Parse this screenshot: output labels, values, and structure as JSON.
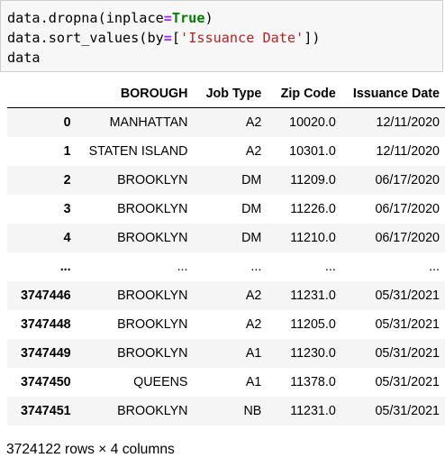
{
  "code": {
    "line1": {
      "pre": "data.dropna(inplace",
      "eq": "=",
      "kw": "True",
      "post": ")"
    },
    "line2": {
      "pre": "data.sort_values(by",
      "eq": "=",
      "open": "[",
      "str": "'Issuance Date'",
      "post": "])"
    },
    "line3": "data"
  },
  "table": {
    "columns": [
      "BOROUGH",
      "Job Type",
      "Zip Code",
      "Issuance Date"
    ],
    "rows": [
      {
        "index": "0",
        "cells": [
          "MANHATTAN",
          "A2",
          "10020.0",
          "12/11/2020"
        ]
      },
      {
        "index": "1",
        "cells": [
          "STATEN ISLAND",
          "A2",
          "10301.0",
          "12/11/2020"
        ]
      },
      {
        "index": "2",
        "cells": [
          "BROOKLYN",
          "DM",
          "11209.0",
          "06/17/2020"
        ]
      },
      {
        "index": "3",
        "cells": [
          "BROOKLYN",
          "DM",
          "11226.0",
          "06/17/2020"
        ]
      },
      {
        "index": "4",
        "cells": [
          "BROOKLYN",
          "DM",
          "11210.0",
          "06/17/2020"
        ]
      },
      {
        "index": "...",
        "cells": [
          "...",
          "...",
          "...",
          "..."
        ]
      },
      {
        "index": "3747446",
        "cells": [
          "BROOKLYN",
          "A2",
          "11231.0",
          "05/31/2021"
        ]
      },
      {
        "index": "3747448",
        "cells": [
          "BROOKLYN",
          "A2",
          "11205.0",
          "05/31/2021"
        ]
      },
      {
        "index": "3747449",
        "cells": [
          "BROOKLYN",
          "A1",
          "11230.0",
          "05/31/2021"
        ]
      },
      {
        "index": "3747450",
        "cells": [
          "QUEENS",
          "A1",
          "11378.0",
          "05/31/2021"
        ]
      },
      {
        "index": "3747451",
        "cells": [
          "BROOKLYN",
          "NB",
          "11231.0",
          "05/31/2021"
        ]
      }
    ]
  },
  "shape_text": "3724122 rows × 4 columns",
  "colors": {
    "keyword_eq": "#aa22ff",
    "keyword_true": "#008000",
    "string": "#ba2121",
    "cell_bg": "#f7f7f7",
    "stripe": "#f5f5f5"
  }
}
